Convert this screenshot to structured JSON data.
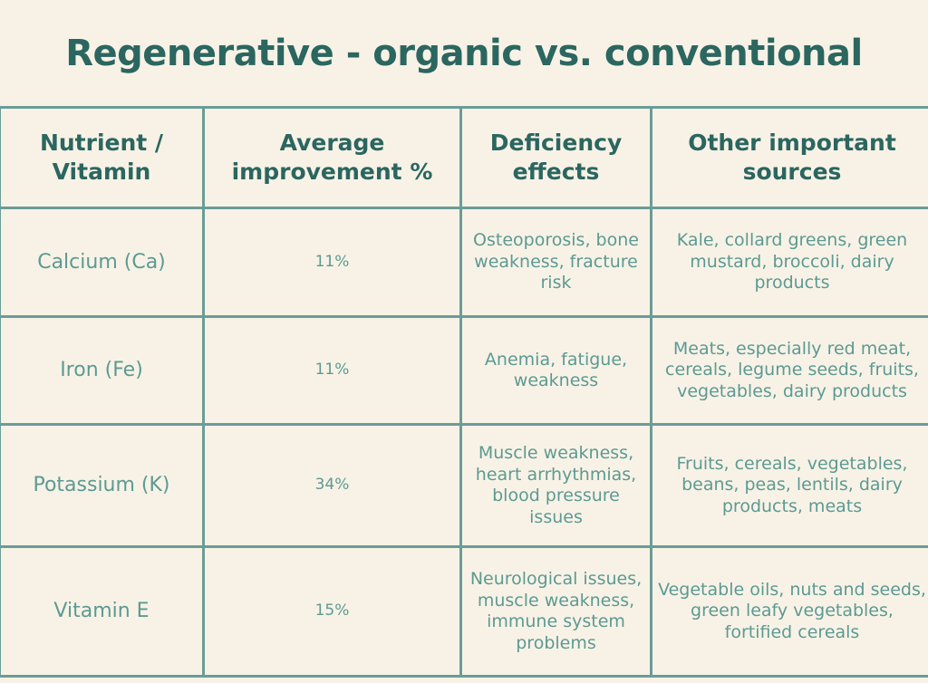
{
  "title": "Regenerative - organic vs. conventional",
  "headers": {
    "nutrient": "Nutrient / Vitamin",
    "improvement": "Average improvement %",
    "deficiency": "Deficiency effects",
    "sources": "Other important sources"
  },
  "rows": [
    {
      "nutrient": "Calcium (Ca)",
      "improvement": "11%",
      "deficiency": "Osteoporosis, bone weakness, fracture risk",
      "sources": "Kale, collard greens, green mustard, broccoli, dairy products"
    },
    {
      "nutrient": "Iron (Fe)",
      "improvement": "11%",
      "deficiency": "Anemia, fatigue, weakness",
      "sources": "Meats, especially red meat, cereals, legume seeds, fruits, vegetables, dairy products"
    },
    {
      "nutrient": "Potassium (K)",
      "improvement": "34%",
      "deficiency": "Muscle weakness, heart arrhythmias, blood pressure issues",
      "sources": "Fruits, cereals, vegetables, beans, peas, lentils, dairy products, meats"
    },
    {
      "nutrient": "Vitamin E",
      "improvement": "15%",
      "deficiency": "Neurological issues, muscle weakness, immune system problems",
      "sources": "Vegetable oils, nuts and seeds, green leafy vegetables, fortified cereals"
    }
  ],
  "colors": {
    "background": "#f8f2e6",
    "heading": "#2b6660",
    "body_text": "#5c9a93",
    "grid": "#6a9c98"
  }
}
